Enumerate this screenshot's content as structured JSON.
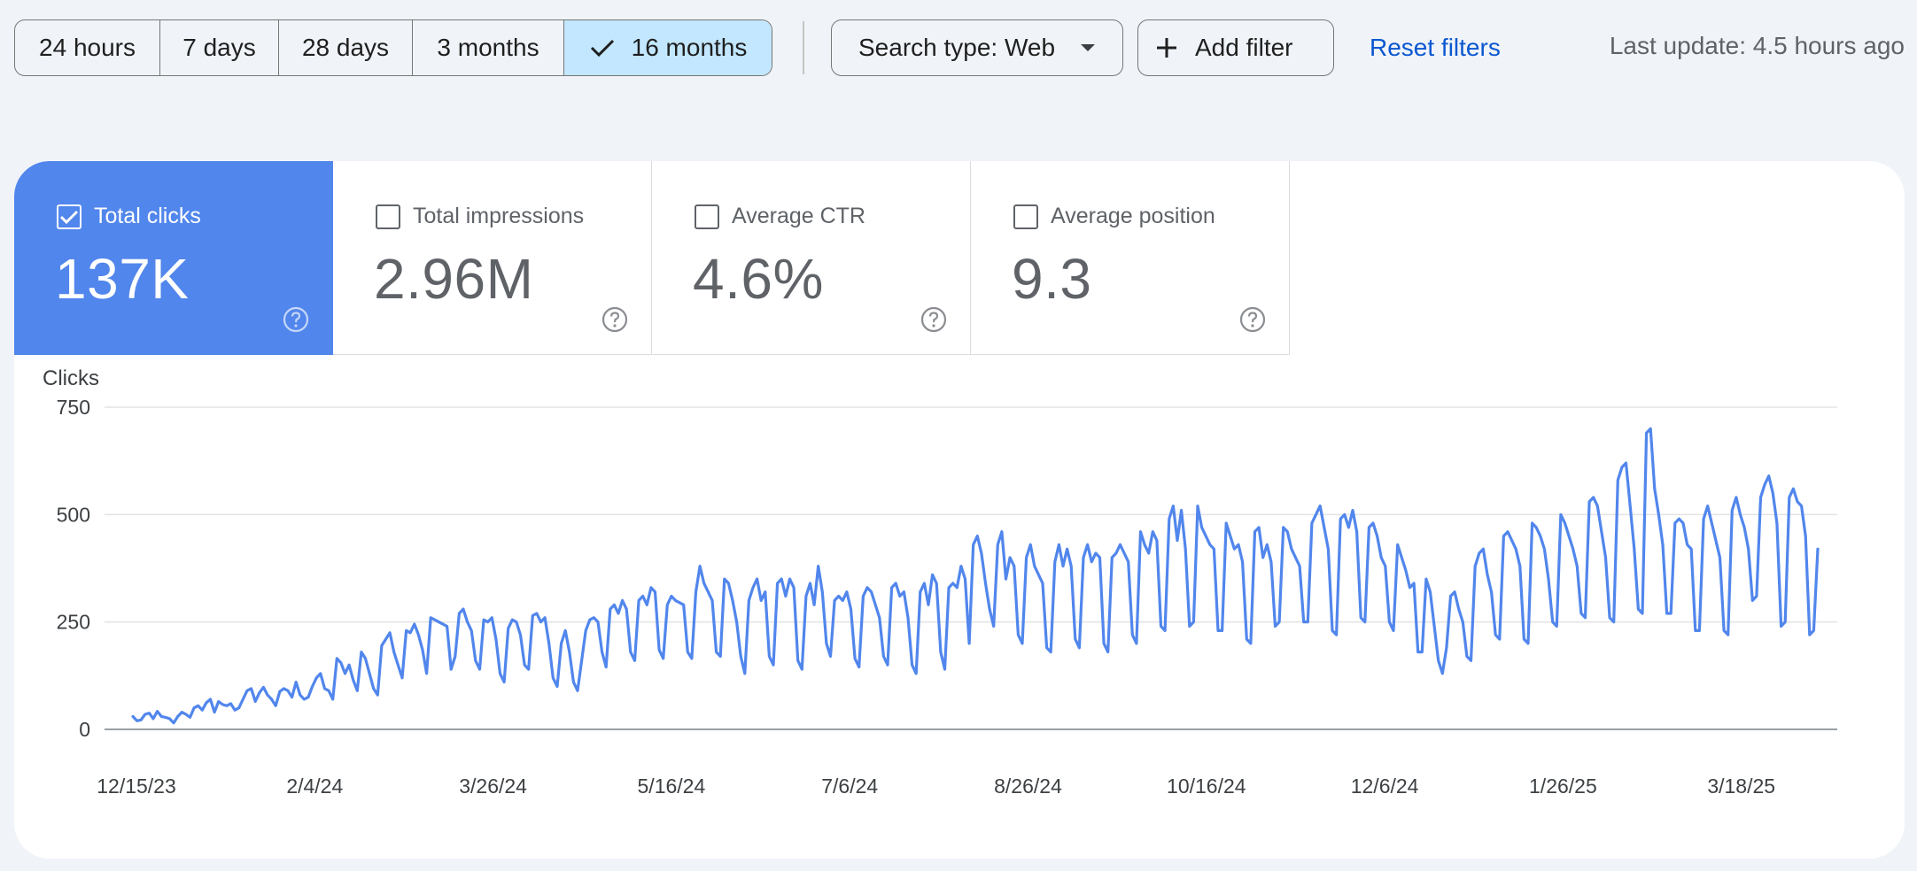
{
  "filters": {
    "ranges": [
      {
        "label": "24 hours",
        "selected": false
      },
      {
        "label": "7 days",
        "selected": false
      },
      {
        "label": "28 days",
        "selected": false
      },
      {
        "label": "3 months",
        "selected": false
      },
      {
        "label": "16 months",
        "selected": true
      }
    ],
    "search_type": "Search type: Web",
    "add_filter": "Add filter",
    "reset": "Reset filters",
    "last_update": "Last update: 4.5 hours ago"
  },
  "metrics": [
    {
      "label": "Total clicks",
      "value": "137K",
      "checked": true,
      "color": "#5186ec"
    },
    {
      "label": "Total impressions",
      "value": "2.96M",
      "checked": false
    },
    {
      "label": "Average CTR",
      "value": "4.6%",
      "checked": false
    },
    {
      "label": "Average position",
      "value": "9.3",
      "checked": false
    }
  ],
  "colors": {
    "accent": "#5186ec",
    "selected_chip": "#c2e7ff",
    "link": "#0b57d0",
    "background": "#f0f4f9"
  },
  "chart_data": {
    "type": "line",
    "ylabel": "Clicks",
    "ylim": [
      0,
      750
    ],
    "yticks": [
      0,
      250,
      500,
      750
    ],
    "xticks": [
      "12/15/23",
      "2/4/24",
      "3/26/24",
      "5/16/24",
      "7/6/24",
      "8/26/24",
      "10/16/24",
      "12/6/24",
      "1/26/25",
      "3/18/25"
    ],
    "grid": true,
    "x_start": "12/15/23",
    "x_end": "4/13/25",
    "series": [
      {
        "color": "#5186ec",
        "values": [
          30,
          20,
          22,
          35,
          38,
          25,
          42,
          30,
          28,
          25,
          15,
          30,
          40,
          35,
          28,
          50,
          55,
          45,
          62,
          70,
          40,
          65,
          58,
          55,
          60,
          45,
          50,
          70,
          90,
          95,
          65,
          85,
          98,
          80,
          70,
          55,
          88,
          95,
          90,
          75,
          110,
          80,
          70,
          75,
          100,
          120,
          130,
          95,
          90,
          70,
          165,
          155,
          130,
          150,
          115,
          90,
          180,
          165,
          130,
          95,
          80,
          195,
          210,
          225,
          180,
          150,
          120,
          230,
          225,
          245,
          220,
          185,
          130,
          260,
          255,
          250,
          245,
          240,
          140,
          170,
          270,
          280,
          250,
          230,
          160,
          140,
          255,
          250,
          260,
          210,
          130,
          110,
          235,
          255,
          250,
          220,
          150,
          140,
          265,
          270,
          250,
          260,
          200,
          120,
          100,
          200,
          230,
          180,
          110,
          90,
          160,
          230,
          255,
          260,
          250,
          180,
          145,
          280,
          290,
          270,
          300,
          280,
          180,
          160,
          300,
          310,
          290,
          330,
          320,
          185,
          165,
          290,
          310,
          300,
          295,
          290,
          180,
          165,
          320,
          380,
          340,
          320,
          300,
          180,
          170,
          350,
          340,
          300,
          250,
          170,
          130,
          300,
          330,
          350,
          300,
          320,
          170,
          150,
          340,
          350,
          310,
          350,
          330,
          160,
          140,
          310,
          340,
          290,
          380,
          320,
          200,
          170,
          300,
          310,
          300,
          320,
          280,
          165,
          145,
          310,
          330,
          320,
          290,
          260,
          170,
          150,
          330,
          340,
          310,
          320,
          260,
          150,
          130,
          320,
          340,
          290,
          360,
          340,
          180,
          140,
          330,
          340,
          330,
          380,
          350,
          200,
          430,
          450,
          410,
          340,
          280,
          240,
          430,
          460,
          350,
          400,
          380,
          220,
          200,
          400,
          430,
          380,
          360,
          340,
          190,
          180,
          390,
          430,
          380,
          420,
          380,
          210,
          190,
          400,
          430,
          390,
          410,
          400,
          200,
          180,
          400,
          410,
          430,
          410,
          390,
          220,
          200,
          460,
          430,
          410,
          460,
          440,
          240,
          230,
          490,
          520,
          440,
          510,
          420,
          240,
          250,
          520,
          470,
          450,
          430,
          420,
          230,
          230,
          480,
          450,
          420,
          430,
          390,
          210,
          200,
          460,
          470,
          400,
          430,
          390,
          240,
          250,
          470,
          460,
          420,
          400,
          380,
          250,
          250,
          480,
          500,
          520,
          470,
          420,
          230,
          220,
          490,
          500,
          470,
          510,
          460,
          260,
          250,
          470,
          480,
          450,
          400,
          380,
          250,
          230,
          430,
          400,
          370,
          330,
          340,
          180,
          180,
          350,
          320,
          240,
          160,
          130,
          190,
          310,
          320,
          280,
          250,
          170,
          160,
          380,
          410,
          420,
          360,
          320,
          220,
          210,
          450,
          460,
          440,
          420,
          380,
          210,
          200,
          480,
          470,
          450,
          420,
          350,
          250,
          240,
          500,
          480,
          450,
          420,
          380,
          270,
          260,
          530,
          540,
          520,
          460,
          400,
          260,
          250,
          580,
          610,
          620,
          520,
          420,
          280,
          270,
          690,
          700,
          560,
          500,
          430,
          270,
          270,
          480,
          490,
          480,
          430,
          420,
          230,
          230,
          490,
          520,
          480,
          440,
          400,
          230,
          220,
          510,
          540,
          500,
          470,
          420,
          300,
          310,
          540,
          570,
          590,
          550,
          480,
          240,
          250,
          540,
          560,
          530,
          520,
          450,
          220,
          230,
          420
        ]
      }
    ]
  }
}
